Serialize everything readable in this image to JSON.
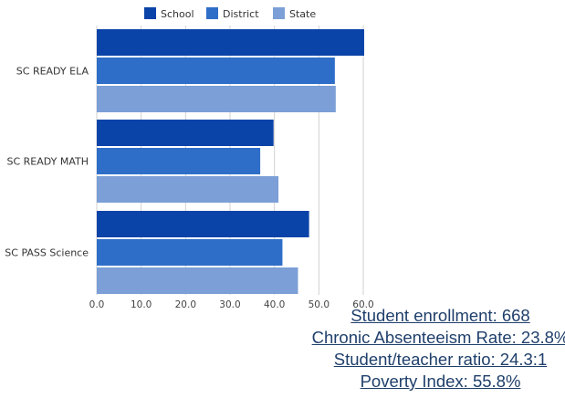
{
  "chart_data": {
    "type": "bar",
    "orientation": "horizontal",
    "categories": [
      "SC READY ELA",
      "SC READY MATH",
      "SC PASS Science"
    ],
    "series": [
      {
        "name": "School",
        "color": "#0b44a8",
        "values": [
          60.2,
          39.8,
          47.8
        ]
      },
      {
        "name": "District",
        "color": "#2e6ec8",
        "values": [
          53.6,
          36.8,
          41.8
        ]
      },
      {
        "name": "State",
        "color": "#7b9fd6",
        "values": [
          53.8,
          40.9,
          45.3
        ]
      }
    ],
    "xlim": [
      0,
      60
    ],
    "x_ticks": [
      "0.0",
      "10.0",
      "20.0",
      "30.0",
      "40.0",
      "50.0",
      "60.0"
    ],
    "grid": true,
    "legend_position": "top"
  },
  "stats": {
    "enrollment": "Student enrollment: 668",
    "absenteeism": "Chronic Absenteeism Rate: 23.8%",
    "ratio": "Student/teacher ratio: 24.3:1",
    "poverty": "Poverty Index: 55.8%"
  }
}
